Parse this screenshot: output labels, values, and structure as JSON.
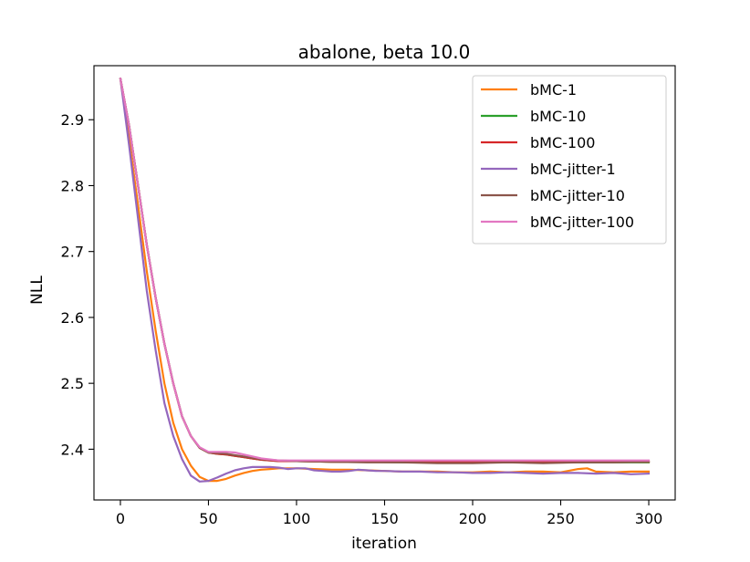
{
  "chart_data": {
    "type": "line",
    "title": "abalone, beta 10.0",
    "xlabel": "iteration",
    "ylabel": "NLL",
    "xlim": [
      -15,
      315
    ],
    "ylim": [
      2.323,
      2.982
    ],
    "xticks": [
      0,
      50,
      100,
      150,
      200,
      250,
      300
    ],
    "xtick_labels": [
      "0",
      "50",
      "100",
      "150",
      "200",
      "250",
      "300"
    ],
    "yticks": [
      2.4,
      2.5,
      2.6,
      2.7,
      2.8,
      2.9
    ],
    "ytick_labels": [
      "2.4",
      "2.5",
      "2.6",
      "2.7",
      "2.8",
      "2.9"
    ],
    "grid": false,
    "legend_position": "top-right",
    "series": [
      {
        "name": "bMC-1",
        "color": "#ff7f0e",
        "points": [
          [
            0,
            2.962
          ],
          [
            5,
            2.87
          ],
          [
            10,
            2.77
          ],
          [
            15,
            2.67
          ],
          [
            20,
            2.58
          ],
          [
            25,
            2.5
          ],
          [
            30,
            2.44
          ],
          [
            35,
            2.4
          ],
          [
            40,
            2.375
          ],
          [
            45,
            2.358
          ],
          [
            50,
            2.352
          ],
          [
            55,
            2.352
          ],
          [
            60,
            2.355
          ],
          [
            65,
            2.36
          ],
          [
            70,
            2.364
          ],
          [
            75,
            2.367
          ],
          [
            80,
            2.369
          ],
          [
            85,
            2.37
          ],
          [
            90,
            2.371
          ],
          [
            100,
            2.371
          ],
          [
            110,
            2.37
          ],
          [
            120,
            2.369
          ],
          [
            130,
            2.369
          ],
          [
            140,
            2.368
          ],
          [
            150,
            2.367
          ],
          [
            160,
            2.366
          ],
          [
            170,
            2.366
          ],
          [
            180,
            2.366
          ],
          [
            190,
            2.365
          ],
          [
            200,
            2.365
          ],
          [
            210,
            2.366
          ],
          [
            220,
            2.365
          ],
          [
            230,
            2.366
          ],
          [
            240,
            2.366
          ],
          [
            250,
            2.365
          ],
          [
            260,
            2.37
          ],
          [
            265,
            2.371
          ],
          [
            270,
            2.366
          ],
          [
            280,
            2.365
          ],
          [
            290,
            2.366
          ],
          [
            300,
            2.366
          ]
        ]
      },
      {
        "name": "bMC-10",
        "color": "#2ca02c",
        "points": [
          [
            0,
            2.962
          ],
          [
            5,
            2.89
          ],
          [
            10,
            2.8
          ],
          [
            15,
            2.71
          ],
          [
            20,
            2.63
          ],
          [
            25,
            2.56
          ],
          [
            30,
            2.5
          ],
          [
            35,
            2.45
          ],
          [
            40,
            2.42
          ],
          [
            45,
            2.402
          ],
          [
            50,
            2.395
          ],
          [
            55,
            2.393
          ],
          [
            60,
            2.392
          ],
          [
            65,
            2.39
          ],
          [
            70,
            2.388
          ],
          [
            75,
            2.386
          ],
          [
            80,
            2.384
          ],
          [
            90,
            2.382
          ],
          [
            100,
            2.382
          ],
          [
            120,
            2.381
          ],
          [
            140,
            2.381
          ],
          [
            160,
            2.38
          ],
          [
            180,
            2.38
          ],
          [
            200,
            2.38
          ],
          [
            220,
            2.38
          ],
          [
            240,
            2.38
          ],
          [
            260,
            2.38
          ],
          [
            280,
            2.38
          ],
          [
            300,
            2.38
          ]
        ]
      },
      {
        "name": "bMC-100",
        "color": "#d62728",
        "points": [
          [
            0,
            2.962
          ],
          [
            5,
            2.89
          ],
          [
            10,
            2.8
          ],
          [
            15,
            2.71
          ],
          [
            20,
            2.63
          ],
          [
            25,
            2.56
          ],
          [
            30,
            2.5
          ],
          [
            35,
            2.45
          ],
          [
            40,
            2.42
          ],
          [
            45,
            2.402
          ],
          [
            50,
            2.395
          ],
          [
            55,
            2.393
          ],
          [
            60,
            2.392
          ],
          [
            65,
            2.39
          ],
          [
            70,
            2.388
          ],
          [
            75,
            2.386
          ],
          [
            80,
            2.384
          ],
          [
            90,
            2.382
          ],
          [
            100,
            2.382
          ],
          [
            120,
            2.381
          ],
          [
            140,
            2.381
          ],
          [
            160,
            2.381
          ],
          [
            180,
            2.381
          ],
          [
            200,
            2.381
          ],
          [
            220,
            2.381
          ],
          [
            240,
            2.381
          ],
          [
            260,
            2.381
          ],
          [
            280,
            2.381
          ],
          [
            300,
            2.381
          ]
        ]
      },
      {
        "name": "bMC-jitter-1",
        "color": "#9467bd",
        "points": [
          [
            0,
            2.962
          ],
          [
            5,
            2.86
          ],
          [
            10,
            2.75
          ],
          [
            15,
            2.64
          ],
          [
            20,
            2.55
          ],
          [
            25,
            2.47
          ],
          [
            30,
            2.42
          ],
          [
            35,
            2.385
          ],
          [
            40,
            2.36
          ],
          [
            45,
            2.351
          ],
          [
            50,
            2.352
          ],
          [
            55,
            2.357
          ],
          [
            60,
            2.363
          ],
          [
            65,
            2.368
          ],
          [
            70,
            2.371
          ],
          [
            75,
            2.373
          ],
          [
            80,
            2.373
          ],
          [
            85,
            2.373
          ],
          [
            90,
            2.372
          ],
          [
            95,
            2.37
          ],
          [
            100,
            2.371
          ],
          [
            105,
            2.371
          ],
          [
            110,
            2.368
          ],
          [
            115,
            2.367
          ],
          [
            120,
            2.366
          ],
          [
            125,
            2.366
          ],
          [
            130,
            2.367
          ],
          [
            135,
            2.369
          ],
          [
            140,
            2.368
          ],
          [
            145,
            2.367
          ],
          [
            150,
            2.367
          ],
          [
            160,
            2.366
          ],
          [
            170,
            2.366
          ],
          [
            180,
            2.365
          ],
          [
            190,
            2.365
          ],
          [
            200,
            2.364
          ],
          [
            210,
            2.364
          ],
          [
            220,
            2.365
          ],
          [
            230,
            2.364
          ],
          [
            240,
            2.363
          ],
          [
            250,
            2.364
          ],
          [
            260,
            2.364
          ],
          [
            270,
            2.363
          ],
          [
            280,
            2.364
          ],
          [
            290,
            2.362
          ],
          [
            300,
            2.363
          ]
        ]
      },
      {
        "name": "bMC-jitter-10",
        "color": "#8c564b",
        "points": [
          [
            0,
            2.962
          ],
          [
            5,
            2.89
          ],
          [
            10,
            2.8
          ],
          [
            15,
            2.71
          ],
          [
            20,
            2.63
          ],
          [
            25,
            2.56
          ],
          [
            30,
            2.5
          ],
          [
            35,
            2.45
          ],
          [
            40,
            2.42
          ],
          [
            45,
            2.402
          ],
          [
            50,
            2.395
          ],
          [
            55,
            2.394
          ],
          [
            60,
            2.393
          ],
          [
            65,
            2.391
          ],
          [
            70,
            2.389
          ],
          [
            75,
            2.387
          ],
          [
            80,
            2.385
          ],
          [
            90,
            2.383
          ],
          [
            100,
            2.382
          ],
          [
            120,
            2.381
          ],
          [
            140,
            2.38
          ],
          [
            160,
            2.38
          ],
          [
            180,
            2.379
          ],
          [
            200,
            2.379
          ],
          [
            220,
            2.38
          ],
          [
            240,
            2.379
          ],
          [
            260,
            2.38
          ],
          [
            280,
            2.38
          ],
          [
            300,
            2.381
          ]
        ]
      },
      {
        "name": "bMC-jitter-100",
        "color": "#e377c2",
        "points": [
          [
            0,
            2.962
          ],
          [
            5,
            2.89
          ],
          [
            10,
            2.8
          ],
          [
            15,
            2.71
          ],
          [
            20,
            2.63
          ],
          [
            25,
            2.56
          ],
          [
            30,
            2.5
          ],
          [
            35,
            2.45
          ],
          [
            40,
            2.42
          ],
          [
            45,
            2.403
          ],
          [
            50,
            2.396
          ],
          [
            55,
            2.396
          ],
          [
            60,
            2.396
          ],
          [
            65,
            2.395
          ],
          [
            70,
            2.392
          ],
          [
            75,
            2.389
          ],
          [
            80,
            2.386
          ],
          [
            90,
            2.383
          ],
          [
            100,
            2.383
          ],
          [
            120,
            2.383
          ],
          [
            140,
            2.383
          ],
          [
            160,
            2.383
          ],
          [
            180,
            2.383
          ],
          [
            200,
            2.383
          ],
          [
            220,
            2.383
          ],
          [
            240,
            2.383
          ],
          [
            260,
            2.383
          ],
          [
            280,
            2.383
          ],
          [
            300,
            2.383
          ]
        ]
      }
    ]
  }
}
